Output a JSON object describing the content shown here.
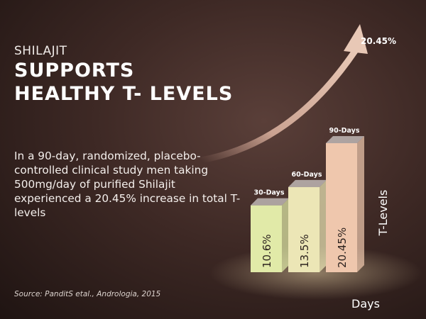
{
  "eyebrow": "SHILAJIT",
  "title_line1": "SUPPORTS",
  "title_line2": "HEALTHY T- LEVELS",
  "description": "In a 90-day, randomized, placebo-controlled clinical study men taking 500mg/day of purified Shilajit experienced a 20.45% increase in total T-levels",
  "source": "Source: PanditS etal., Andrologia, 2015",
  "chart_data": {
    "type": "bar",
    "categories": [
      "30-Days",
      "60-Days",
      "90-Days"
    ],
    "values": [
      10.6,
      13.5,
      20.45
    ],
    "value_labels": [
      "10.6%",
      "13.5%",
      "20.45%"
    ],
    "ylabel": "T-Levels",
    "xlabel": "Days",
    "annotation": "20.45%",
    "colors": [
      "#e1eaa8",
      "#ece6b6",
      "#efc7ad"
    ]
  }
}
